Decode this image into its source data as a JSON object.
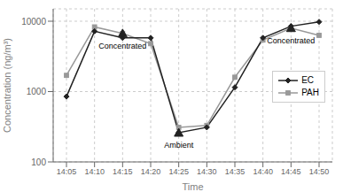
{
  "chart_data": {
    "type": "line",
    "x_label": "Time",
    "y_label": "Concentration (ng/m³)",
    "categories": [
      "14:05",
      "14:10",
      "14:15",
      "14:20",
      "14:25",
      "14:30",
      "14:35",
      "14:40",
      "14:45",
      "14:50"
    ],
    "series": [
      {
        "name": "EC",
        "color": "#222222",
        "marker": "diamond",
        "values": [
          850,
          7200,
          5800,
          5800,
          260,
          310,
          1150,
          5800,
          8500,
          9800
        ]
      },
      {
        "name": "PAH",
        "color": "#999999",
        "marker": "square",
        "values": [
          1700,
          8300,
          6700,
          4800,
          310,
          330,
          1600,
          5400,
          8000,
          6300
        ]
      }
    ],
    "log": "y",
    "ylim": [
      100,
      15000
    ],
    "yticks": [
      100,
      1000,
      10000
    ],
    "grid": true,
    "legend": "right",
    "annotations": [
      {
        "text": "Concentrated",
        "x": "14:15",
        "y": 6700,
        "marker": "triangle",
        "color": "#222222"
      },
      {
        "text": "Concentrated",
        "x": "14:45",
        "y": 8000,
        "marker": "triangle",
        "color": "#222222"
      },
      {
        "text": "Ambient",
        "x": "14:25",
        "y": 260,
        "marker": "triangle",
        "color": "#222222"
      }
    ]
  }
}
